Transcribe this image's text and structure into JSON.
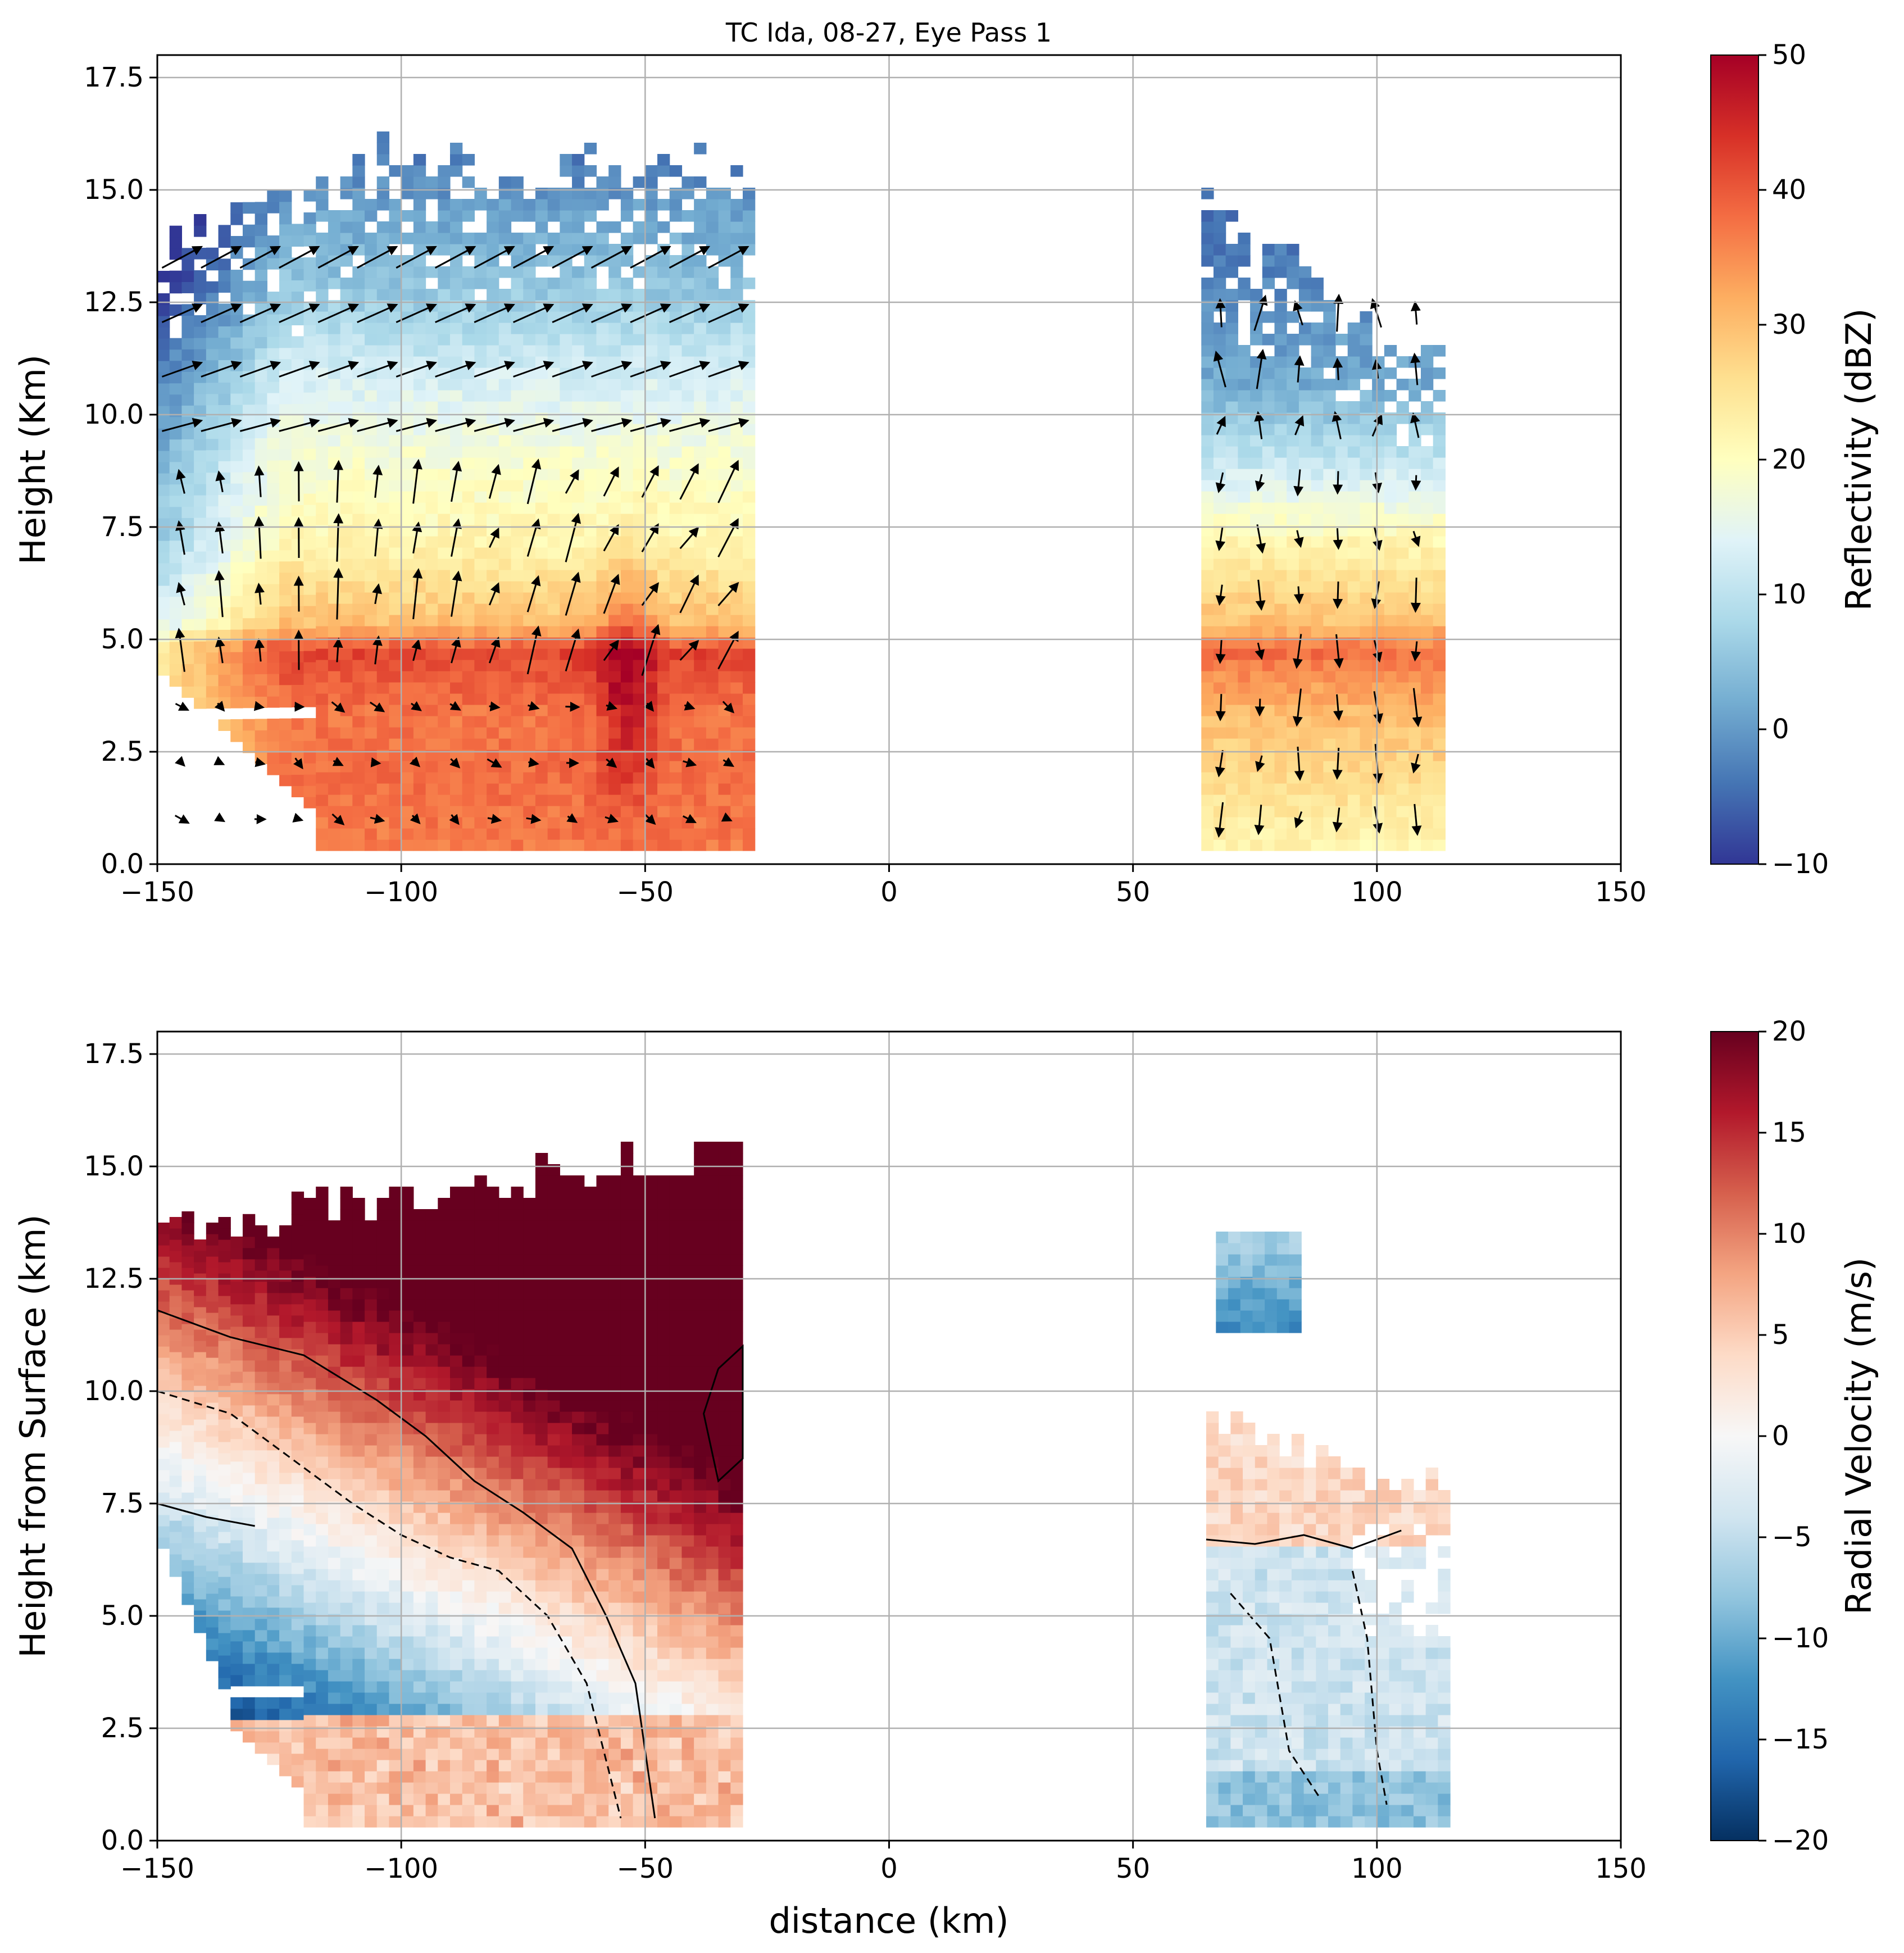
{
  "figure": {
    "title": "TC Ida, 08-27, Eye Pass 1"
  },
  "chart_data": [
    {
      "type": "heatmap",
      "panel": "top",
      "title": "TC Ida, 08-27, Eye Pass 1",
      "xlabel": "",
      "ylabel": "Height (Km)",
      "xlim": [
        -150,
        150
      ],
      "ylim": [
        0,
        18
      ],
      "xticks": [
        -150,
        -100,
        -50,
        0,
        50,
        100,
        150
      ],
      "yticks": [
        0.0,
        2.5,
        5.0,
        7.5,
        10.0,
        12.5,
        15.0,
        17.5
      ],
      "xtick_labels": [
        "−150",
        "−100",
        "−50",
        "0",
        "50",
        "100",
        "150"
      ],
      "ytick_labels": [
        "0.0",
        "2.5",
        "5.0",
        "7.5",
        "10.0",
        "12.5",
        "15.0",
        "17.5"
      ],
      "grid": true,
      "colorbar": {
        "label": "Reflectivity (dBZ)",
        "range": [
          -10,
          50
        ],
        "ticks": [
          -10,
          0,
          10,
          20,
          30,
          40,
          50
        ],
        "tick_labels": [
          "−10",
          "0",
          "10",
          "20",
          "30",
          "40",
          "50"
        ],
        "colormap": "RdYlBu_r"
      },
      "regions": [
        {
          "name": "left",
          "x_range": [
            -150,
            -28
          ],
          "top_km": 15.5,
          "profile": [
            [
              0.3,
              37
            ],
            [
              2.0,
              38
            ],
            [
              3.2,
              37
            ],
            [
              4.6,
              42
            ],
            [
              5.2,
              30
            ],
            [
              7.0,
              22
            ],
            [
              9.0,
              18
            ],
            [
              11.0,
              12
            ],
            [
              12.5,
              6
            ],
            [
              14.0,
              2
            ],
            [
              15.5,
              -3
            ]
          ]
        },
        {
          "name": "right",
          "x_range": [
            64,
            112
          ],
          "top_km": 14.5,
          "profile": [
            [
              0.3,
              22
            ],
            [
              2.0,
              27
            ],
            [
              3.2,
              30
            ],
            [
              4.6,
              38
            ],
            [
              5.2,
              30
            ],
            [
              7.0,
              22
            ],
            [
              9.0,
              10
            ],
            [
              10.5,
              2
            ],
            [
              14.5,
              -5
            ]
          ]
        }
      ],
      "vectors": "wind vectors overlaid (black arrows)"
    },
    {
      "type": "heatmap",
      "panel": "bottom",
      "xlabel": "distance (km)",
      "ylabel": "Height from Surface (km)",
      "xlim": [
        -150,
        150
      ],
      "ylim": [
        0,
        18
      ],
      "xticks": [
        -150,
        -100,
        -50,
        0,
        50,
        100,
        150
      ],
      "yticks": [
        0.0,
        2.5,
        5.0,
        7.5,
        10.0,
        12.5,
        15.0,
        17.5
      ],
      "xtick_labels": [
        "−150",
        "−100",
        "−50",
        "0",
        "50",
        "100",
        "150"
      ],
      "ytick_labels": [
        "0.0",
        "2.5",
        "5.0",
        "7.5",
        "10.0",
        "12.5",
        "15.0",
        "17.5"
      ],
      "grid": true,
      "colorbar": {
        "label": "Radial Velocity (m/s)",
        "range": [
          -20,
          20
        ],
        "ticks": [
          -20,
          -15,
          -10,
          -5,
          0,
          5,
          10,
          15,
          20
        ],
        "tick_labels": [
          "−20",
          "−15",
          "−10",
          "−5",
          "0",
          "5",
          "10",
          "15",
          "20"
        ],
        "colormap": "RdBu_r"
      },
      "regions": [
        {
          "name": "left",
          "x_range": [
            -150,
            -30
          ],
          "top_km": 15.5
        },
        {
          "name": "right-lower",
          "x_range": [
            65,
            113
          ],
          "top_km": 9.5
        },
        {
          "name": "right-upper-blob",
          "x_range": [
            67,
            84
          ],
          "height_range": [
            11.3,
            13.5
          ]
        }
      ],
      "contours": "black contour lines, solid positive / dashed negative"
    }
  ]
}
